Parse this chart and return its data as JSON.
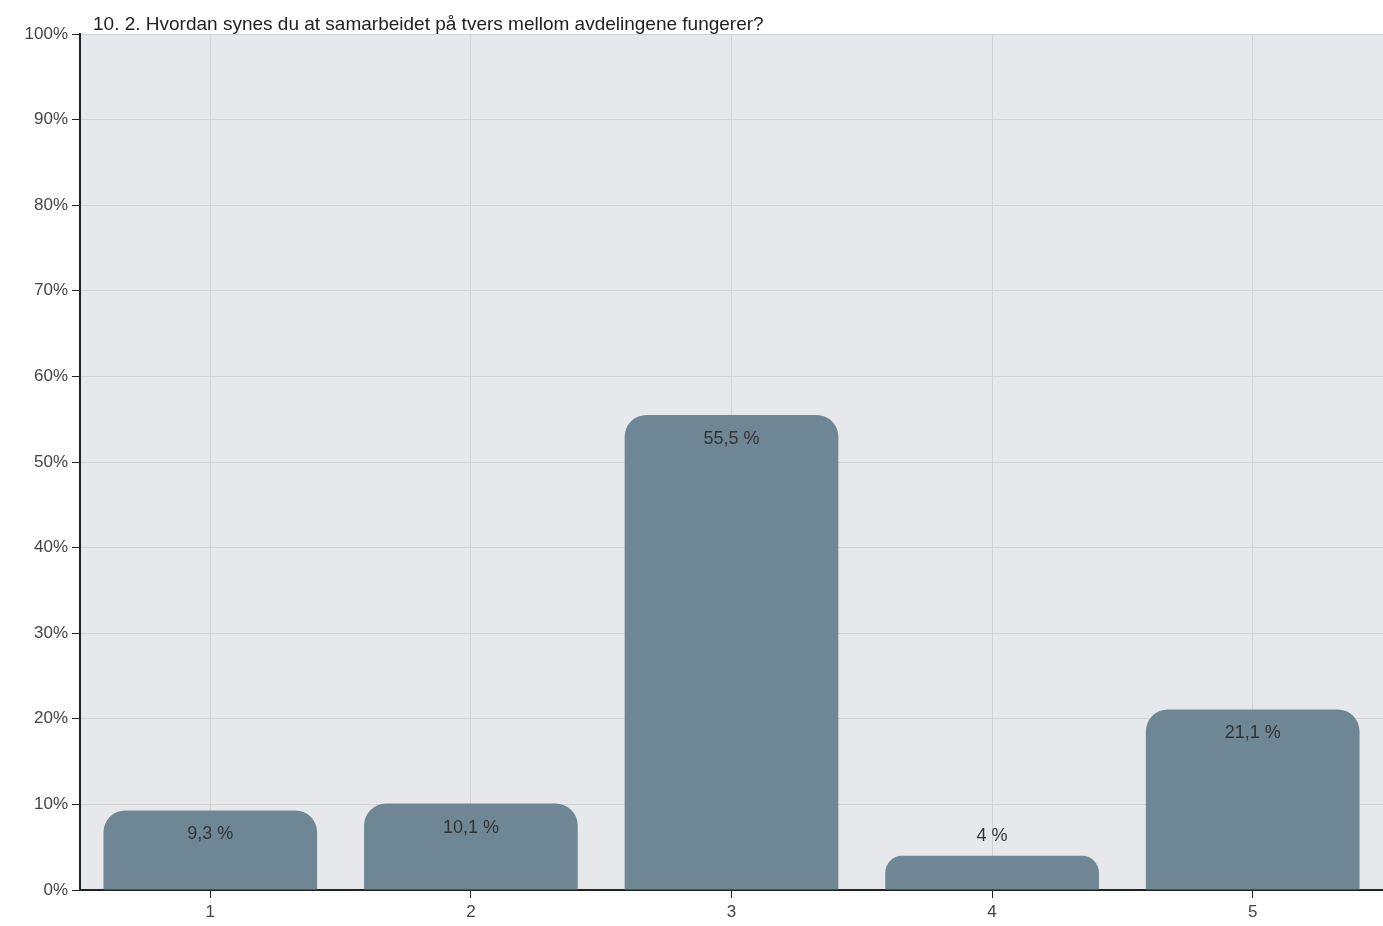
{
  "chart_data": {
    "type": "bar",
    "title": "10. 2. Hvordan synes du at samarbeidet på tvers mellom avdelingene fungerer?",
    "categories": [
      "1",
      "2",
      "3",
      "4",
      "5"
    ],
    "values": [
      9.3,
      10.1,
      55.5,
      4,
      21.1
    ],
    "value_labels": [
      "9,3 %",
      "10,1 %",
      "55,5 %",
      "4 %",
      "21,1 %"
    ],
    "color": "#6f8794",
    "ylim": [
      0,
      100
    ],
    "yticks": [
      {
        "value": 0,
        "label": "0%"
      },
      {
        "value": 10,
        "label": "10%"
      },
      {
        "value": 20,
        "label": "20%"
      },
      {
        "value": 30,
        "label": "30%"
      },
      {
        "value": 40,
        "label": "40%"
      },
      {
        "value": 50,
        "label": "50%"
      },
      {
        "value": 60,
        "label": "60%"
      },
      {
        "value": 70,
        "label": "70%"
      },
      {
        "value": 80,
        "label": "80%"
      },
      {
        "value": 90,
        "label": "90%"
      },
      {
        "value": 100,
        "label": "100%"
      }
    ],
    "grid": true
  }
}
